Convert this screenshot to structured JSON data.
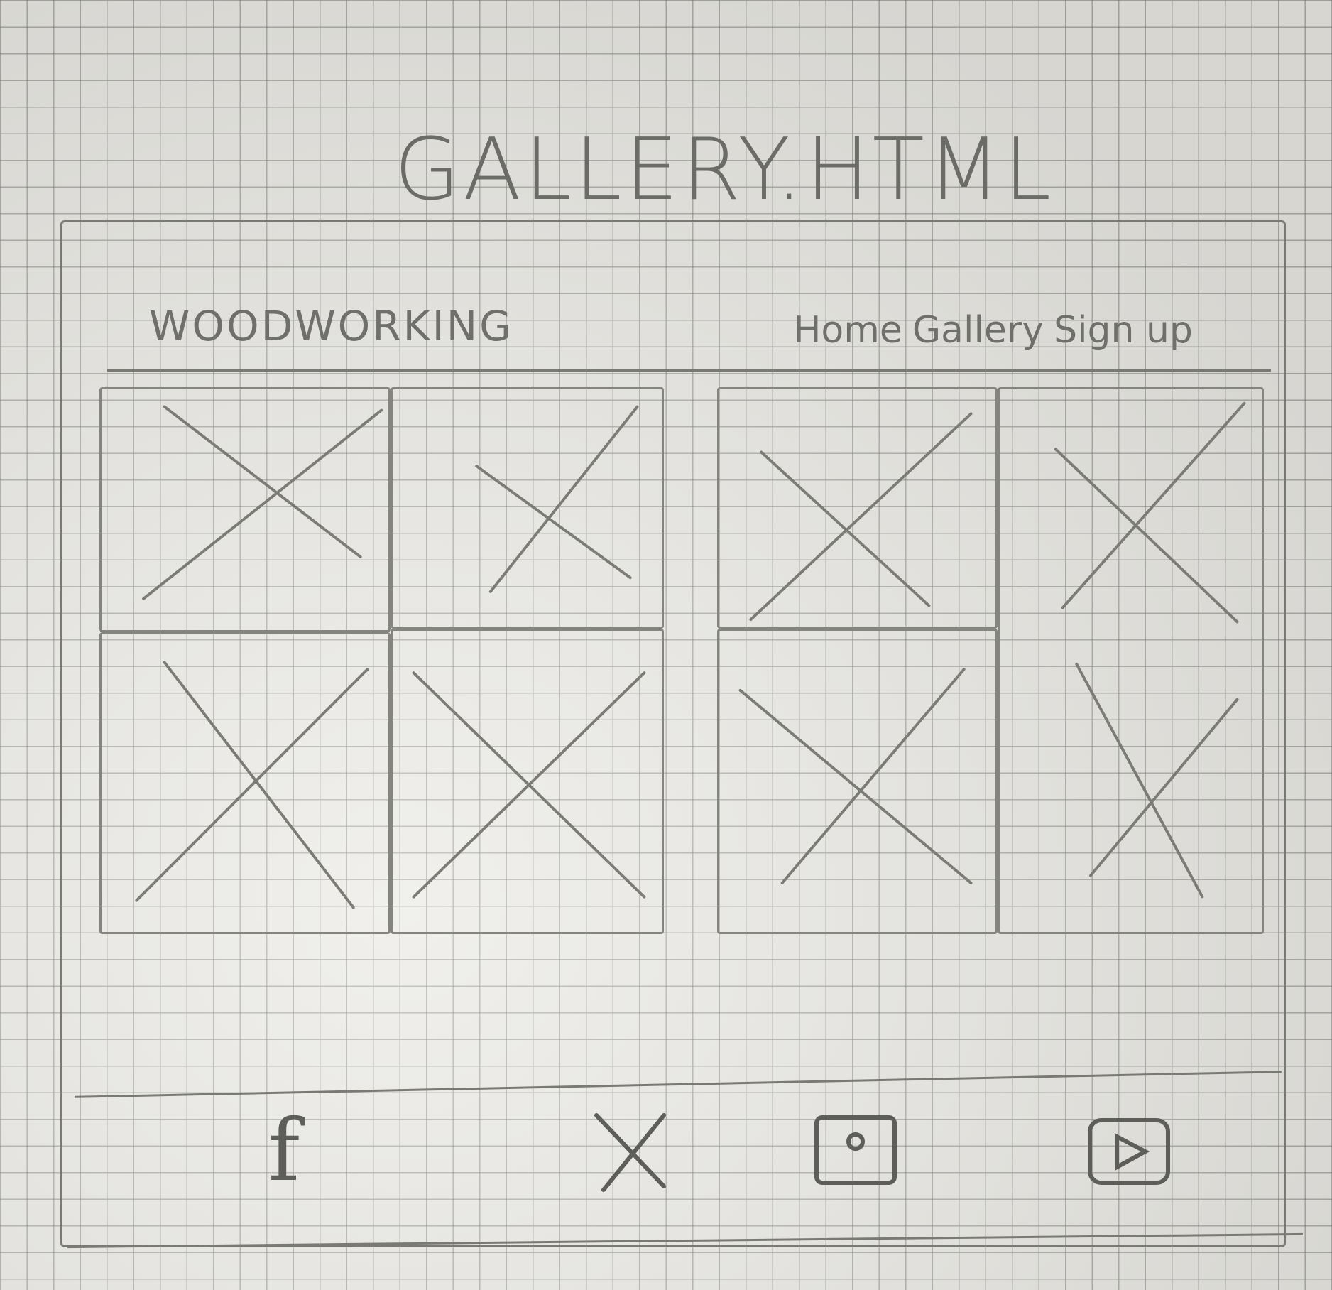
{
  "page": {
    "title": "GALLERY.HTML"
  },
  "header": {
    "logo": "WOODWORKING",
    "nav": [
      "Home",
      "Gallery",
      "Sign up"
    ]
  },
  "gallery": {
    "placeholders": [
      "image-placeholder",
      "image-placeholder",
      "image-placeholder",
      "image-placeholder",
      "image-placeholder",
      "image-placeholder",
      "image-placeholder"
    ]
  },
  "footer": {
    "social": [
      "facebook-icon",
      "x-icon",
      "instagram-icon",
      "youtube-icon"
    ],
    "facebook_glyph": "f"
  },
  "colors": {
    "paper": "#e9e8e3",
    "pencil": "#7a7a75",
    "grid": "#787876"
  }
}
